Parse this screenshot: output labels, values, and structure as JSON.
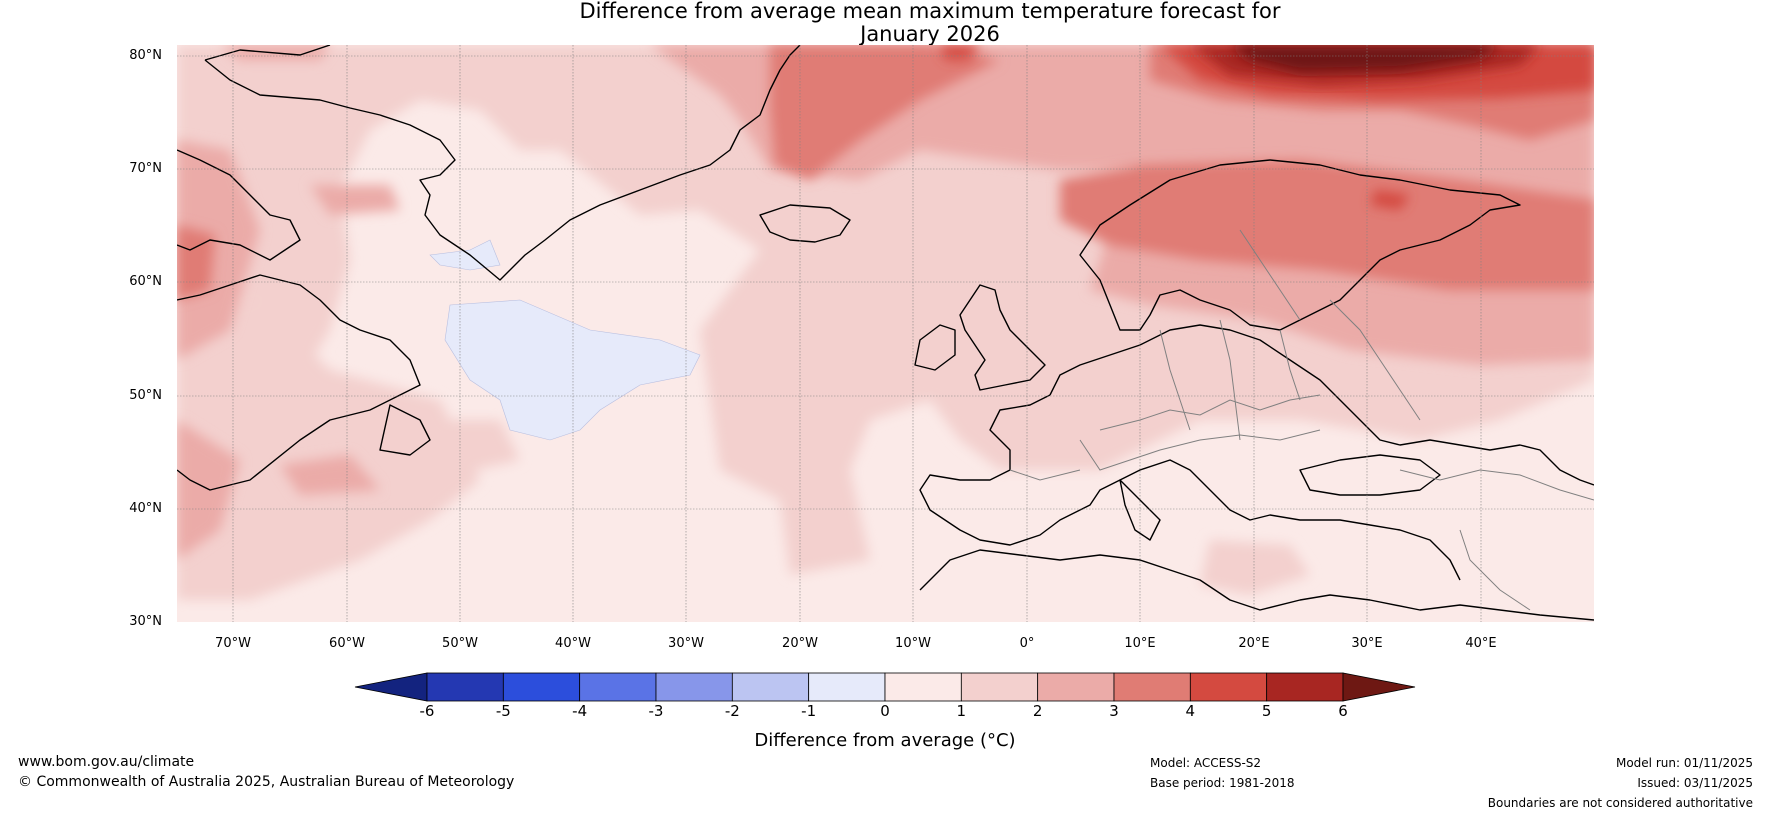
{
  "title": {
    "line1": "Difference from average mean maximum temperature forecast for",
    "line2": "January 2026"
  },
  "map": {
    "lat_labels": [
      "80°N",
      "70°N",
      "60°N",
      "50°N",
      "40°N",
      "30°N"
    ],
    "lon_labels": [
      "70°W",
      "60°W",
      "50°W",
      "40°W",
      "30°W",
      "20°W",
      "10°W",
      "0°",
      "10°E",
      "20°E",
      "30°E",
      "40°E"
    ],
    "lat_range": [
      30,
      81
    ],
    "lon_range": [
      -75,
      50
    ]
  },
  "legend": {
    "title": "Difference from average (°C)",
    "ticks": [
      "-6",
      "-5",
      "-4",
      "-3",
      "-2",
      "-1",
      "0",
      "1",
      "2",
      "3",
      "4",
      "5",
      "6"
    ],
    "colors": [
      "#13237f",
      "#2438b2",
      "#2c4edc",
      "#5a73e6",
      "#8796ea",
      "#bcc5f2",
      "#e6eafa",
      "#fbeae8",
      "#f3d0ce",
      "#ebaba8",
      "#e07c74",
      "#d44a40",
      "#a82622",
      "#6e1813"
    ]
  },
  "footer": {
    "website": "www.bom.gov.au/climate",
    "copyright": "© Commonwealth of Australia 2025, Australian Bureau of Meteorology",
    "model": "Model: ACCESS-S2",
    "base_period": "Base period: 1981-2018",
    "model_run": "Model run: 01/11/2025",
    "issued": "Issued: 03/11/2025",
    "disclaimer": "Boundaries are not considered authoritative"
  }
}
